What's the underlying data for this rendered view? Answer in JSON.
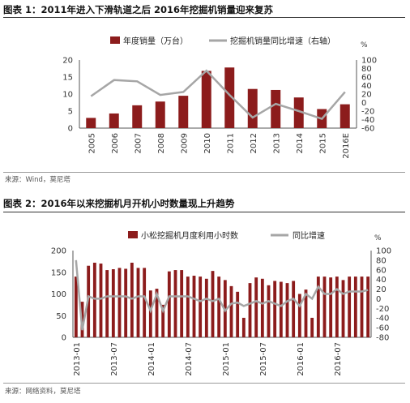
{
  "figure1": {
    "title": "图表 1：2011年进入下滑轨道之后 2016年挖掘机销量迎来复苏",
    "source": "来源：Wind，莫尼塔"
  },
  "figure2": {
    "title": "图表 2：2016年以来挖掘机月开机小时数量现上升趋势",
    "source": "来源：网络资料，莫尼塔"
  },
  "colors": {
    "bar": "#8c1c1c",
    "line": "#a6a6a6",
    "axis": "#555555"
  },
  "chart_data": [
    {
      "type": "bar",
      "categories": [
        "2005",
        "2006",
        "2007",
        "2008",
        "2009",
        "2010",
        "2011",
        "2012",
        "2013",
        "2014",
        "2015",
        "2016E"
      ],
      "series": [
        {
          "name": "年度销量（万台）",
          "type": "bar",
          "axis": "left",
          "values": [
            3.0,
            4.3,
            6.7,
            7.8,
            9.5,
            16.8,
            17.8,
            11.5,
            11.2,
            9.0,
            5.6,
            7.0
          ]
        },
        {
          "name": "挖掘机销量同比增速（右轴）",
          "type": "line",
          "axis": "right",
          "values": [
            15,
            53,
            50,
            18,
            25,
            75,
            18,
            -35,
            -3,
            -20,
            -38,
            25
          ]
        }
      ],
      "ylim": [
        0,
        20
      ],
      "yticks": [
        0,
        5,
        10,
        15,
        20
      ],
      "y2lim": [
        -60,
        100
      ],
      "y2ticks": [
        -60,
        -40,
        -20,
        0,
        20,
        40,
        60,
        80,
        100
      ],
      "y2unit": "%",
      "legend_position": "top-center"
    },
    {
      "type": "bar",
      "x_ticks": [
        "2013-01",
        "2013-07",
        "2014-01",
        "2014-07",
        "2015-01",
        "2015-07",
        "2016-01",
        "2016-07"
      ],
      "x_tick_index": [
        0,
        6,
        12,
        18,
        24,
        30,
        36,
        42
      ],
      "series": [
        {
          "name": "小松挖掘机月度利用小时数",
          "type": "bar",
          "axis": "left",
          "values": [
            140,
            82,
            165,
            172,
            170,
            155,
            157,
            160,
            158,
            172,
            160,
            160,
            108,
            112,
            75,
            152,
            155,
            155,
            140,
            142,
            140,
            135,
            153,
            140,
            132,
            118,
            105,
            45,
            125,
            138,
            135,
            120,
            130,
            128,
            125,
            130,
            100,
            110,
            45,
            140,
            140,
            138,
            140,
            132,
            140,
            140,
            140,
            140
          ]
        },
        {
          "name": "同比增速",
          "type": "line",
          "axis": "right",
          "values": [
            80,
            -65,
            5,
            0,
            0,
            5,
            5,
            5,
            5,
            0,
            5,
            5,
            -25,
            10,
            -25,
            5,
            5,
            5,
            5,
            0,
            -5,
            0,
            -5,
            0,
            -25,
            -10,
            -8,
            -15,
            -10,
            -5,
            -10,
            -5,
            -10,
            -15,
            -5,
            0,
            -15,
            10,
            0,
            25,
            10,
            10,
            20,
            10,
            15,
            15,
            15,
            18
          ]
        }
      ],
      "ylim": [
        0,
        200
      ],
      "yticks": [
        0,
        50,
        100,
        150,
        200
      ],
      "y2lim": [
        -80,
        100
      ],
      "y2ticks": [
        -80,
        -60,
        -40,
        -20,
        0,
        20,
        40,
        60,
        80,
        100
      ],
      "y2unit": "%",
      "legend_position": "top-center"
    }
  ]
}
